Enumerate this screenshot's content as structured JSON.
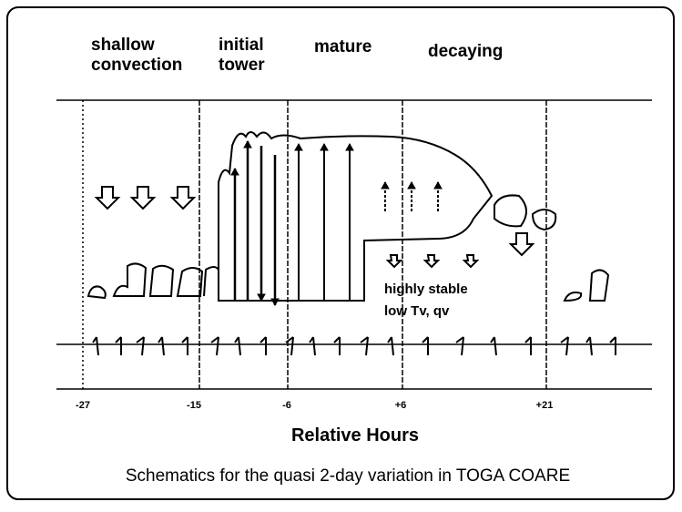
{
  "stages": [
    {
      "lines": [
        "shallow",
        "convection"
      ]
    },
    {
      "lines": [
        "initial",
        "tower"
      ]
    },
    {
      "lines": [
        "mature"
      ]
    },
    {
      "lines": [
        "decaying"
      ]
    }
  ],
  "annotations": [
    "highly stable",
    "low Tv, qv"
  ],
  "hour_labels": [
    "-27",
    "-15",
    "-6",
    "+6",
    "+21"
  ],
  "axis_label": "Relative Hours",
  "caption": "Schematics for the quasi 2-day variation in TOGA COARE"
}
